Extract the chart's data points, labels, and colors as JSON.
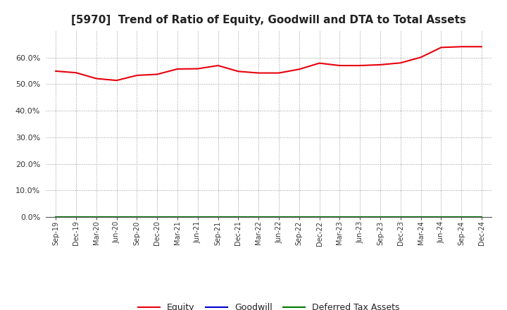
{
  "title": "[5970]  Trend of Ratio of Equity, Goodwill and DTA to Total Assets",
  "x_labels": [
    "Sep-19",
    "Dec-19",
    "Mar-20",
    "Jun-20",
    "Sep-20",
    "Dec-20",
    "Mar-21",
    "Jun-21",
    "Sep-21",
    "Dec-21",
    "Mar-22",
    "Jun-22",
    "Sep-22",
    "Dec-22",
    "Mar-23",
    "Jun-23",
    "Sep-23",
    "Dec-23",
    "Mar-24",
    "Jun-24",
    "Sep-24",
    "Dec-24"
  ],
  "equity": [
    0.549,
    0.543,
    0.521,
    0.514,
    0.533,
    0.537,
    0.557,
    0.558,
    0.57,
    0.548,
    0.542,
    0.542,
    0.556,
    0.579,
    0.57,
    0.57,
    0.573,
    0.58,
    0.601,
    0.638,
    0.641,
    0.641
  ],
  "goodwill": [
    0.0,
    0.0,
    0.0,
    0.0,
    0.0,
    0.0,
    0.0,
    0.0,
    0.0,
    0.0,
    0.0,
    0.0,
    0.0,
    0.0,
    0.0,
    0.0,
    0.0,
    0.0,
    0.0,
    0.0,
    0.0,
    0.0
  ],
  "dta": [
    0.0,
    0.0,
    0.0,
    0.0,
    0.0,
    0.0,
    0.0,
    0.0,
    0.0,
    0.0,
    0.0,
    0.0,
    0.0,
    0.0,
    0.0,
    0.0,
    0.0,
    0.0,
    0.0,
    0.0,
    0.0,
    0.0
  ],
  "equity_color": "#e8000d",
  "goodwill_color": "#0000cc",
  "dta_color": "#007700",
  "ylim": [
    0.0,
    0.7
  ],
  "yticks": [
    0.0,
    0.1,
    0.2,
    0.3,
    0.4,
    0.5,
    0.6
  ],
  "background_color": "#ffffff",
  "plot_bg_color": "#ffffff",
  "grid_color": "#999999",
  "title_fontsize": 11,
  "legend_labels": [
    "Equity",
    "Goodwill",
    "Deferred Tax Assets"
  ]
}
